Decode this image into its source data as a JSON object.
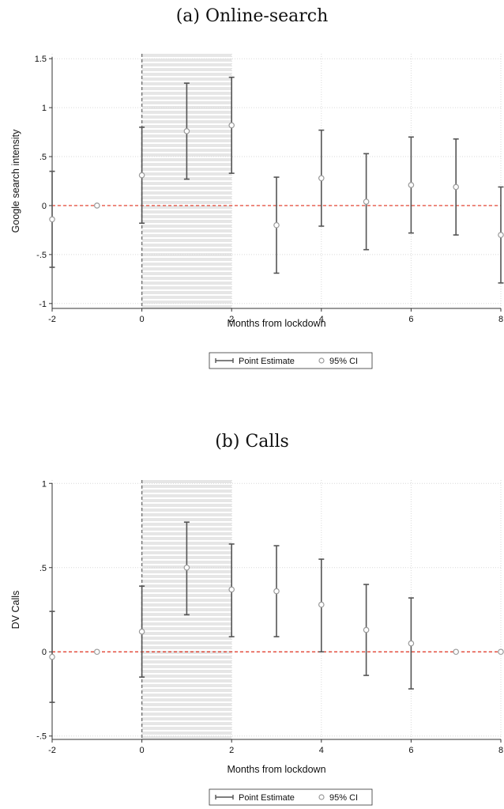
{
  "panels": [
    {
      "title": "(a) Online-search",
      "chart_data": {
        "type": "scatter",
        "subtype": "event-study with 95% CI whiskers",
        "xlabel": "Months from lockdown",
        "ylabel": "Google search intensity",
        "xlim": [
          -2,
          8
        ],
        "ylim": [
          -1.05,
          1.55
        ],
        "xticks": [
          -2,
          0,
          2,
          4,
          6,
          8
        ],
        "yticks": [
          -1,
          -0.5,
          0,
          0.5,
          1,
          1.5
        ],
        "ytick_labels": [
          "-1",
          "-.5",
          "0",
          ".5",
          "1",
          "1.5"
        ],
        "shaded_region": [
          0,
          2
        ],
        "vline_x": 0,
        "hline_y": 0,
        "grid": true,
        "points": [
          {
            "x": -2,
            "y": -0.14,
            "lo": -0.63,
            "hi": 0.35
          },
          {
            "x": -1,
            "y": 0.0,
            "lo": null,
            "hi": null
          },
          {
            "x": 0,
            "y": 0.31,
            "lo": -0.18,
            "hi": 0.8
          },
          {
            "x": 1,
            "y": 0.76,
            "lo": 0.27,
            "hi": 1.25
          },
          {
            "x": 2,
            "y": 0.82,
            "lo": 0.33,
            "hi": 1.31
          },
          {
            "x": 3,
            "y": -0.2,
            "lo": -0.69,
            "hi": 0.29
          },
          {
            "x": 4,
            "y": 0.28,
            "lo": -0.21,
            "hi": 0.77
          },
          {
            "x": 5,
            "y": 0.04,
            "lo": -0.45,
            "hi": 0.53
          },
          {
            "x": 6,
            "y": 0.21,
            "lo": -0.28,
            "hi": 0.7
          },
          {
            "x": 7,
            "y": 0.19,
            "lo": -0.3,
            "hi": 0.68
          },
          {
            "x": 8,
            "y": -0.3,
            "lo": -0.79,
            "hi": 0.19
          }
        ],
        "legend": [
          "Point Estimate",
          "95% CI"
        ],
        "legend_position": "bottom-center"
      }
    },
    {
      "title": "(b) Calls",
      "chart_data": {
        "type": "scatter",
        "subtype": "event-study with 95% CI whiskers",
        "xlabel": "Months from lockdown",
        "ylabel": "DV Calls",
        "xlim": [
          -2,
          8
        ],
        "ylim": [
          -0.52,
          1.02
        ],
        "xticks": [
          -2,
          0,
          2,
          4,
          6,
          8
        ],
        "yticks": [
          -0.5,
          0,
          0.5,
          1
        ],
        "ytick_labels": [
          "-.5",
          "0",
          ".5",
          "1"
        ],
        "shaded_region": [
          0,
          2
        ],
        "vline_x": 0,
        "hline_y": 0,
        "grid": true,
        "points": [
          {
            "x": -2,
            "y": -0.03,
            "lo": -0.3,
            "hi": 0.24
          },
          {
            "x": -1,
            "y": 0.0,
            "lo": null,
            "hi": null
          },
          {
            "x": 0,
            "y": 0.12,
            "lo": -0.15,
            "hi": 0.39
          },
          {
            "x": 1,
            "y": 0.5,
            "lo": 0.22,
            "hi": 0.77
          },
          {
            "x": 2,
            "y": 0.37,
            "lo": 0.09,
            "hi": 0.64
          },
          {
            "x": 3,
            "y": 0.36,
            "lo": 0.09,
            "hi": 0.63
          },
          {
            "x": 4,
            "y": 0.28,
            "lo": 0.0,
            "hi": 0.55
          },
          {
            "x": 5,
            "y": 0.13,
            "lo": -0.14,
            "hi": 0.4
          },
          {
            "x": 6,
            "y": 0.05,
            "lo": -0.22,
            "hi": 0.32
          },
          {
            "x": 7,
            "y": 0.0,
            "lo": null,
            "hi": null
          },
          {
            "x": 8,
            "y": 0.0,
            "lo": null,
            "hi": null
          }
        ],
        "legend": [
          "Point Estimate",
          "95% CI"
        ],
        "legend_position": "bottom-center"
      }
    }
  ],
  "colors": {
    "point": "#9a9a9a",
    "whisker": "#555555",
    "zero_line": "#e0301e",
    "vline": "#777777",
    "grid": "#d9d9d9",
    "shade": "#e6e6e6"
  }
}
